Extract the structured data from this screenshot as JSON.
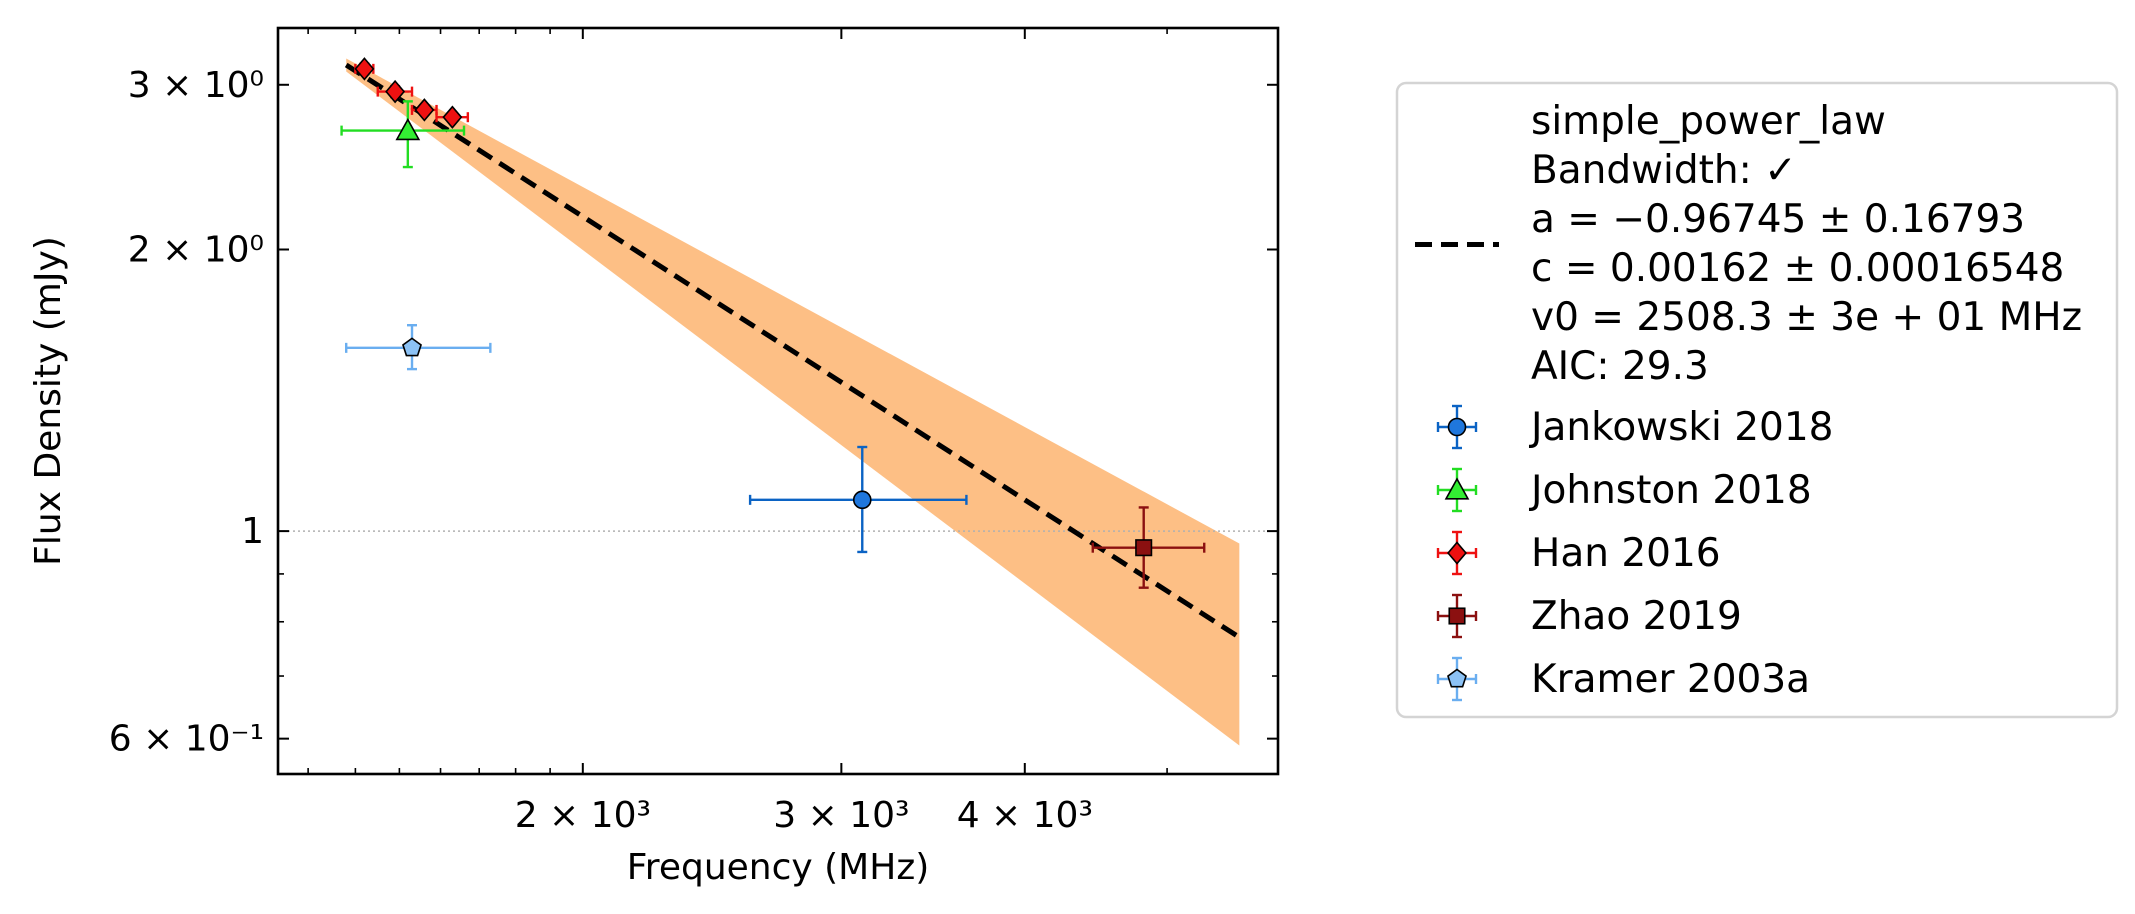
{
  "chart_data": {
    "type": "scatter",
    "xscale": "log",
    "yscale": "log",
    "xlabel": "Frequency (MHz)",
    "ylabel": "Flux Density (mJy)",
    "xlim": [
      1240,
      5950
    ],
    "ylim": [
      0.55,
      3.45
    ],
    "x_ticks": [
      {
        "value": 2000,
        "label": "2 × 10³"
      },
      {
        "value": 3000,
        "label": "3 × 10³"
      },
      {
        "value": 4000,
        "label": "4 × 10³"
      }
    ],
    "y_ticks": [
      {
        "value": 0.6,
        "label": "6 × 10⁻¹"
      },
      {
        "value": 1,
        "label": "1"
      },
      {
        "value": 2,
        "label": "2 × 10⁰"
      },
      {
        "value": 3,
        "label": "3 × 10⁰"
      }
    ],
    "reference_line": {
      "y": 1,
      "style": "dotted",
      "color": "#b0b0b0"
    },
    "fit": {
      "name": "simple_power_law",
      "style": "dashed",
      "color": "#000000",
      "band_color": "#fdbf85",
      "x": [
        1380,
        5600
      ],
      "y": [
        3.15,
        0.77
      ],
      "band_lower": [
        3.1,
        0.59
      ],
      "band_upper": [
        3.2,
        0.97
      ],
      "legend_lines": [
        "simple_power_law",
        "Bandwidth: ✓",
        "a = −0.96745 ± 0.16793",
        "c = 0.00162 ± 0.00016548",
        "v0 = 2508.3 ± 3e + 01 MHz",
        "AIC: 29.3"
      ]
    },
    "series": [
      {
        "name": "Jankowski 2018",
        "marker": "circle",
        "color": "#0b63c4",
        "face": "#1f77dd",
        "points": [
          {
            "x": 3100,
            "y": 1.08,
            "xerr": [
              2600,
              3650
            ],
            "yerr": [
              0.95,
              1.23
            ]
          }
        ]
      },
      {
        "name": "Johnston 2018",
        "marker": "triangle",
        "color": "#22dd22",
        "face": "#33ee33",
        "points": [
          {
            "x": 1520,
            "y": 2.68,
            "xerr": [
              1370,
              1660
            ],
            "yerr": [
              2.45,
              2.88
            ]
          }
        ]
      },
      {
        "name": "Han 2016",
        "marker": "diamond",
        "color": "#ee1111",
        "face": "#ee1111",
        "points": [
          {
            "x": 1420,
            "y": 3.12,
            "xerr": [
              1400,
              1440
            ],
            "yerr": [
              3.08,
              3.16
            ]
          },
          {
            "x": 1490,
            "y": 2.95,
            "xerr": [
              1450,
              1530
            ],
            "yerr": [
              2.91,
              2.99
            ]
          },
          {
            "x": 1560,
            "y": 2.82,
            "xerr": [
              1530,
              1590
            ],
            "yerr": [
              2.79,
              2.85
            ]
          },
          {
            "x": 1630,
            "y": 2.77,
            "xerr": [
              1590,
              1670
            ],
            "yerr": [
              2.74,
              2.8
            ]
          }
        ]
      },
      {
        "name": "Zhao 2019",
        "marker": "square",
        "color": "#8b1010",
        "face": "#8b1010",
        "points": [
          {
            "x": 4820,
            "y": 0.96,
            "xerr": [
              4450,
              5300
            ],
            "yerr": [
              0.87,
              1.06
            ]
          }
        ]
      },
      {
        "name": "Kramer 2003a",
        "marker": "pentagon",
        "color": "#6aaef0",
        "face": "#8cc2f5",
        "points": [
          {
            "x": 1530,
            "y": 1.57,
            "xerr": [
              1380,
              1730
            ],
            "yerr": [
              1.49,
              1.66
            ]
          }
        ]
      }
    ],
    "legend": {
      "position": "outside-right"
    }
  }
}
